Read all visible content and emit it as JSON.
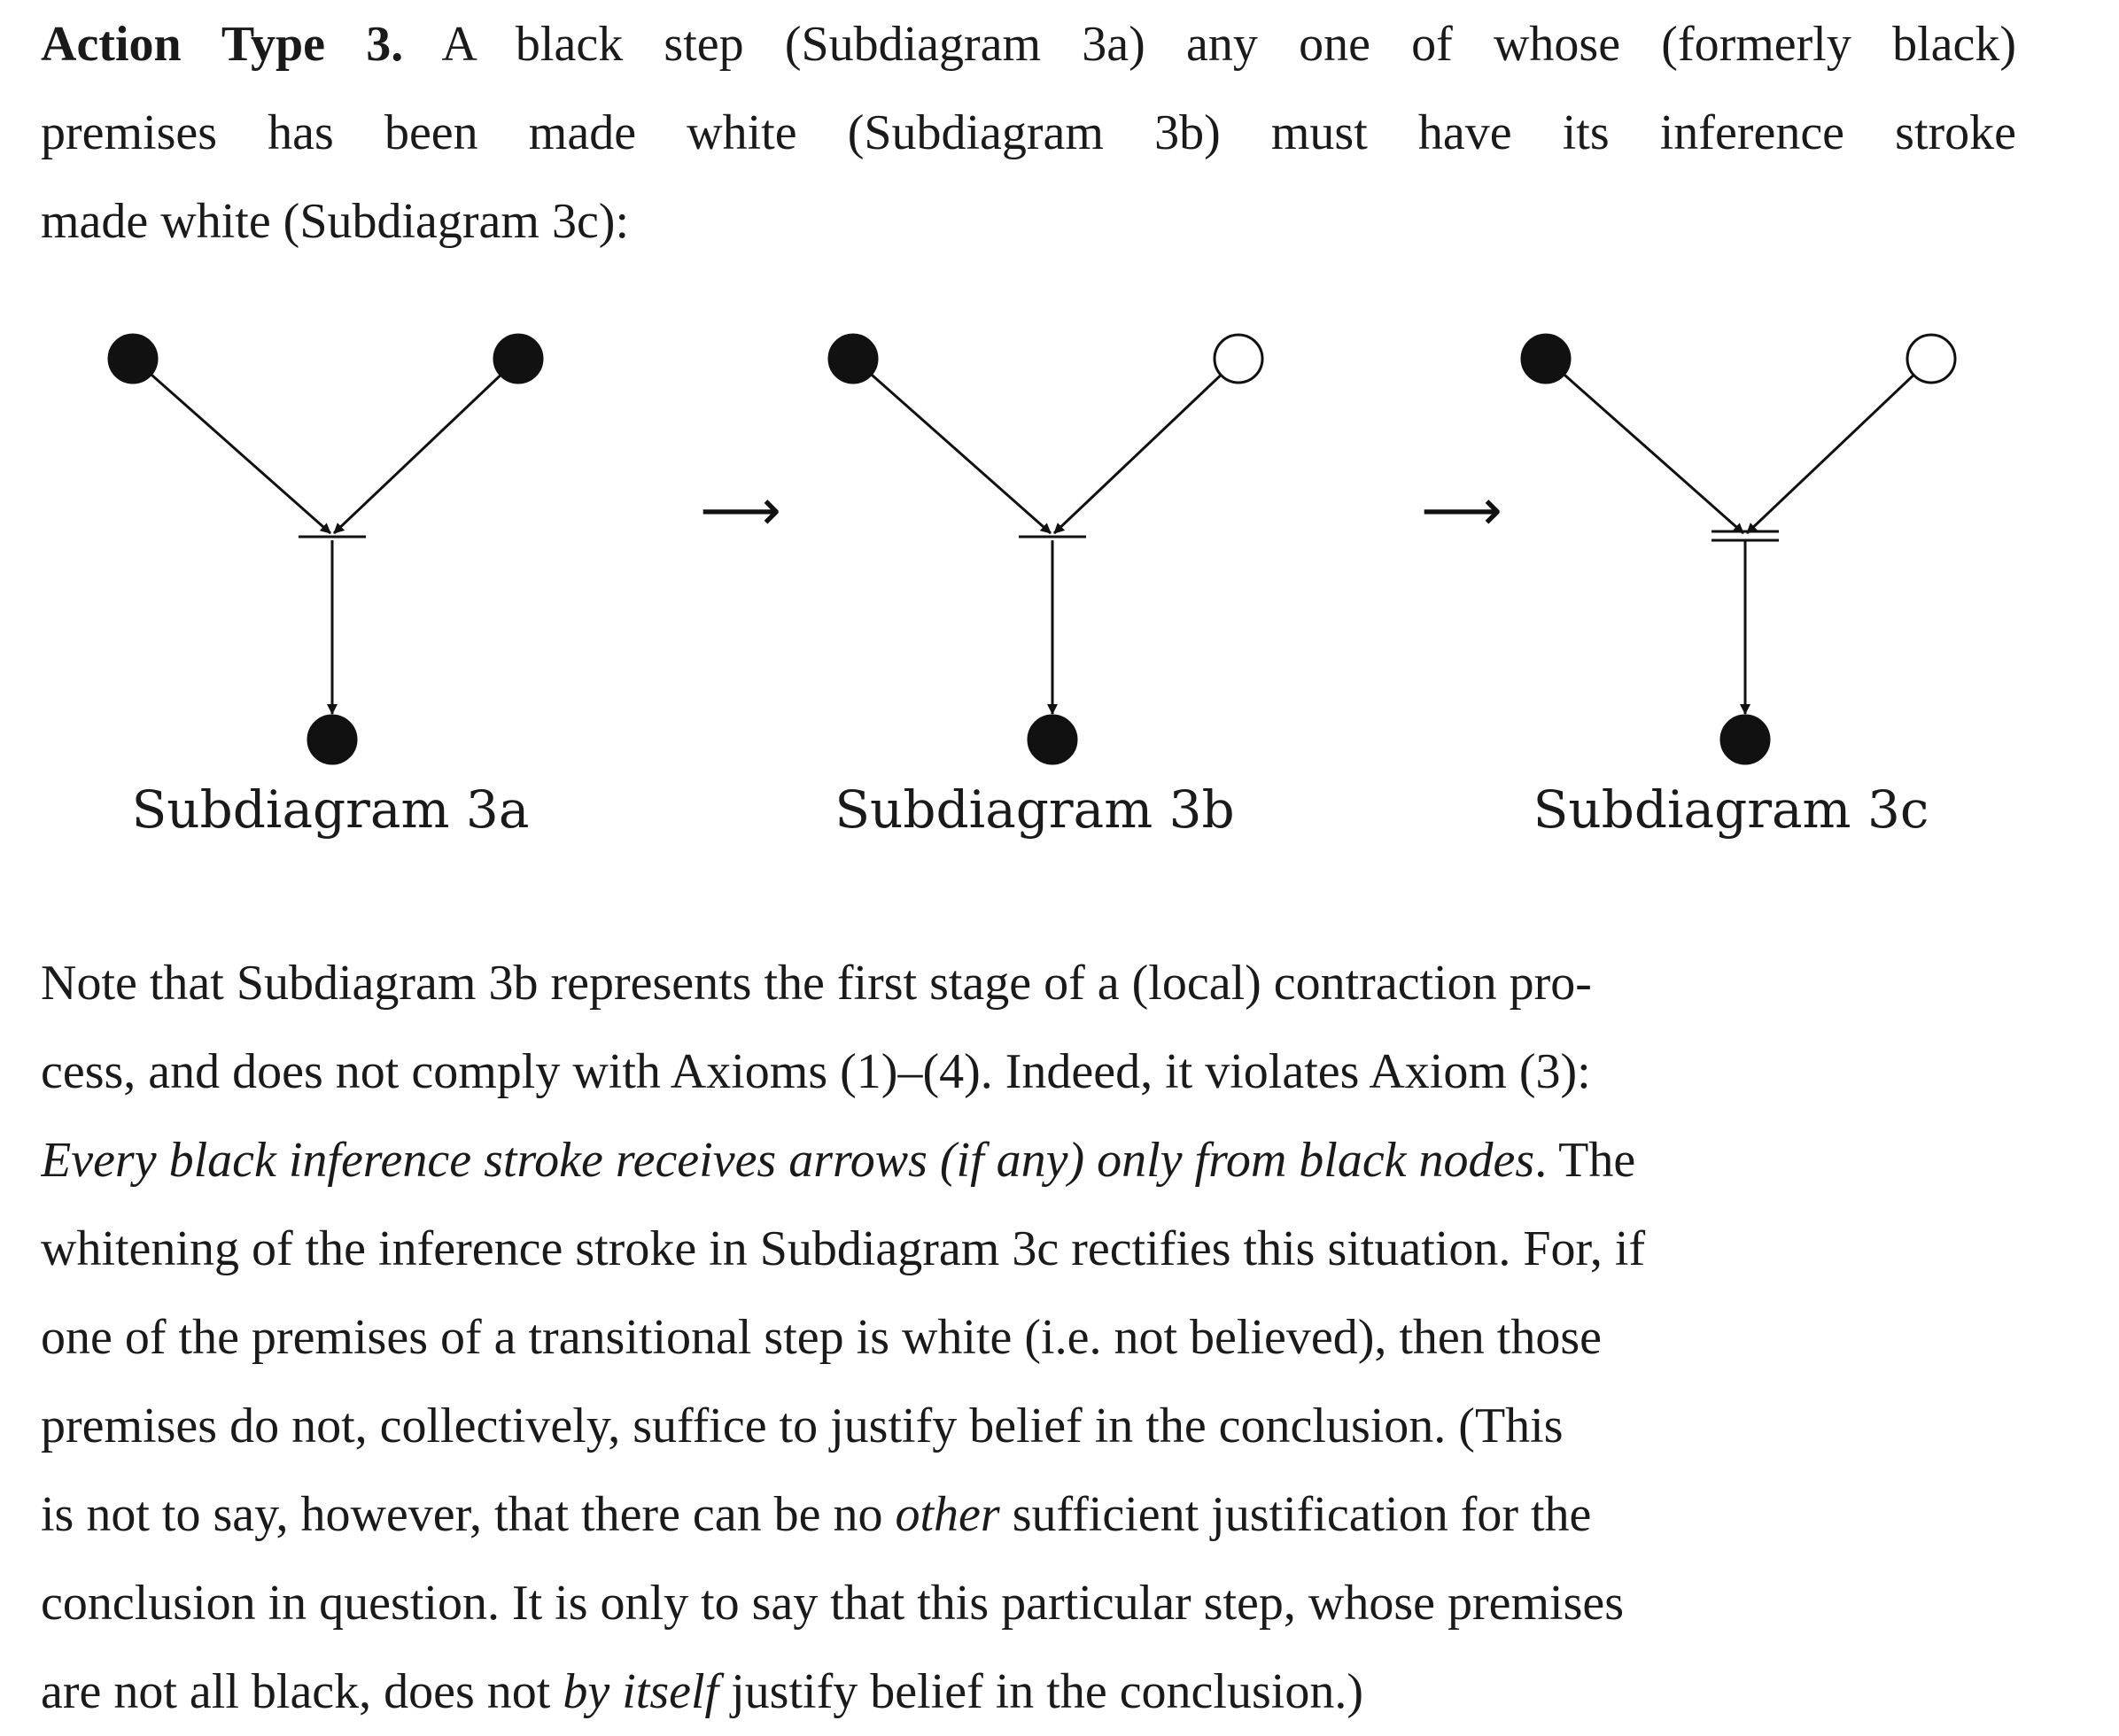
{
  "para1": {
    "lead": "Action Type 3.",
    "line1_rest": " A black step (Subdiagram 3a) any one of whose (formerly black)",
    "line2": "premises has been made white (Subdiagram 3b) must have its inference stroke",
    "line3": "made white (Subdiagram 3c):"
  },
  "figure": {
    "subdiagrams": [
      {
        "caption": "Subdiagram 3a",
        "left_premise": "black",
        "right_premise": "black",
        "inference_stroke": "black",
        "conclusion": "black"
      },
      {
        "caption": "Subdiagram 3b",
        "left_premise": "black",
        "right_premise": "white",
        "inference_stroke": "black",
        "conclusion": "black"
      },
      {
        "caption": "Subdiagram 3c",
        "left_premise": "black",
        "right_premise": "white",
        "inference_stroke": "white",
        "conclusion": "black"
      }
    ],
    "transition_arrow": "⟶"
  },
  "para2": {
    "l1": "Note that Subdiagram 3b represents the first stage of a (local) contraction pro-",
    "l2": "cess, and does not comply with Axioms (1)–(4). Indeed, it violates Axiom (3):",
    "l3_italic": "Every black inference stroke receives arrows (if any) only from black nodes",
    "l3_rest": ". The",
    "l4": "whitening of the inference stroke in Subdiagram 3c rectifies this situation. For, if",
    "l5": "one of the premises of a transitional step is white (i.e. not believed), then those",
    "l6": "premises do not, collectively, suffice to justify belief in the conclusion. (This",
    "l7_a": "is not to say, however, that there can be no ",
    "l7_it": "other",
    "l7_b": " sufficient justification for the",
    "l8": "conclusion in question. It is only to say that this particular step, whose premises",
    "l9_a": "are not all black, does not ",
    "l9_it": "by itself",
    "l9_b": " justify belief in the conclusion.)"
  }
}
